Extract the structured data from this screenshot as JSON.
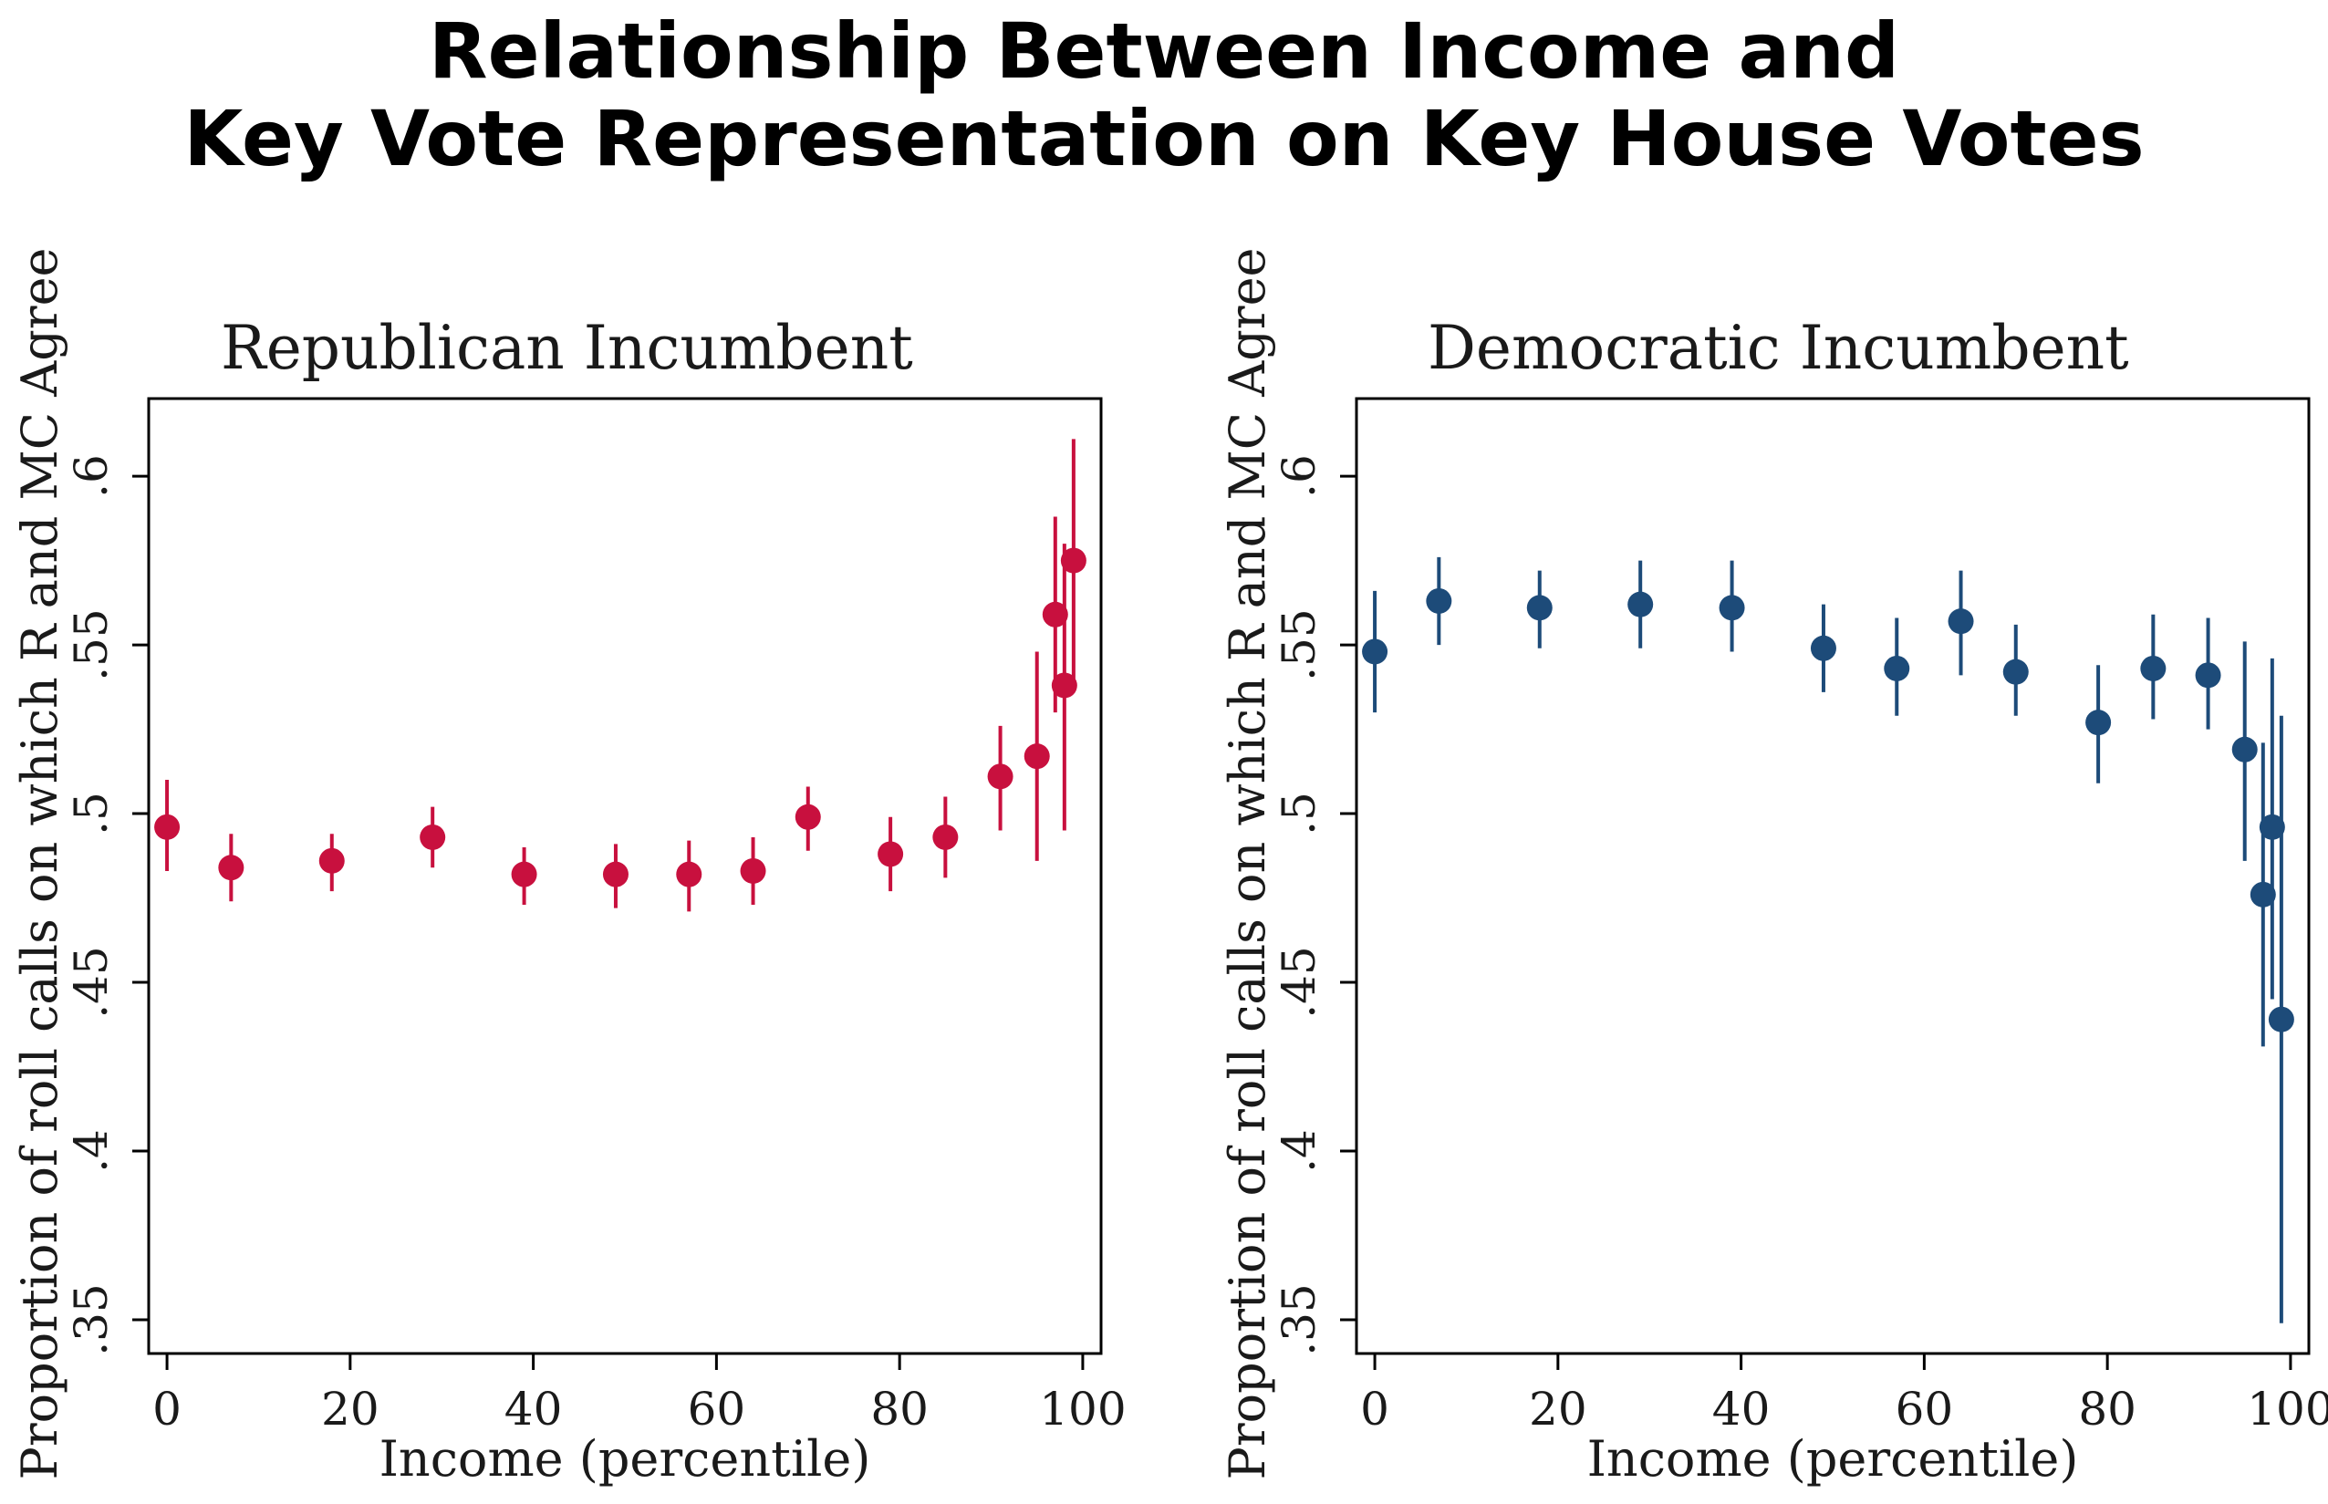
{
  "title_lines": [
    "Relationship Between Income and",
    "Key Vote Representation on Key House Votes"
  ],
  "colors": {
    "republican": "#c8103e",
    "democratic": "#1d4b79"
  },
  "chart_data": [
    {
      "type": "scatter",
      "title": "Republican Incumbent",
      "xlabel": "Income (percentile)",
      "ylabel": "Proportion of roll calls on which R and MC Agree",
      "xlim": [
        -2,
        102
      ],
      "ylim": [
        0.34,
        0.623
      ],
      "xticks": [
        0,
        20,
        40,
        60,
        80,
        100
      ],
      "xtick_labels": [
        "0",
        "20",
        "40",
        "60",
        "80",
        "100"
      ],
      "yticks": [
        0.35,
        0.4,
        0.45,
        0.5,
        0.55,
        0.6
      ],
      "ytick_labels": [
        ".35",
        ".4",
        ".45",
        ".5",
        ".55",
        ".6"
      ],
      "series": [
        {
          "color": "#c8103e",
          "x": [
            0,
            7,
            18,
            29,
            39,
            49,
            57,
            64,
            70,
            79,
            85,
            91,
            95,
            97,
            98,
            99
          ],
          "y": [
            0.496,
            0.484,
            0.486,
            0.493,
            0.482,
            0.482,
            0.482,
            0.483,
            0.499,
            0.488,
            0.493,
            0.511,
            0.517,
            0.559,
            0.538,
            0.575
          ],
          "lower": [
            0.483,
            0.474,
            0.477,
            0.484,
            0.473,
            0.472,
            0.471,
            0.473,
            0.489,
            0.477,
            0.481,
            0.495,
            0.486,
            0.53,
            0.495,
            0.538
          ],
          "upper": [
            0.51,
            0.494,
            0.494,
            0.502,
            0.49,
            0.491,
            0.492,
            0.493,
            0.508,
            0.499,
            0.505,
            0.526,
            0.548,
            0.588,
            0.58,
            0.611
          ]
        }
      ]
    },
    {
      "type": "scatter",
      "title": "Democratic Incumbent",
      "xlabel": "Income (percentile)",
      "ylabel": "Proportion of roll calls on which R and MC Agree",
      "xlim": [
        -2,
        102
      ],
      "ylim": [
        0.34,
        0.623
      ],
      "xticks": [
        0,
        20,
        40,
        60,
        80,
        100
      ],
      "xtick_labels": [
        "0",
        "20",
        "40",
        "60",
        "80",
        "100"
      ],
      "yticks": [
        0.35,
        0.4,
        0.45,
        0.5,
        0.55,
        0.6
      ],
      "ytick_labels": [
        ".35",
        ".4",
        ".45",
        ".5",
        ".55",
        ".6"
      ],
      "series": [
        {
          "color": "#1d4b79",
          "x": [
            0,
            7,
            18,
            29,
            39,
            49,
            57,
            64,
            70,
            79,
            85,
            91,
            95,
            97,
            98,
            99
          ],
          "y": [
            0.548,
            0.563,
            0.561,
            0.562,
            0.561,
            0.549,
            0.543,
            0.557,
            0.542,
            0.527,
            0.543,
            0.541,
            0.519,
            0.476,
            0.496,
            0.439
          ],
          "lower": [
            0.53,
            0.55,
            0.549,
            0.549,
            0.548,
            0.536,
            0.529,
            0.541,
            0.529,
            0.509,
            0.528,
            0.525,
            0.486,
            0.431,
            0.445,
            0.349
          ],
          "upper": [
            0.566,
            0.576,
            0.572,
            0.575,
            0.575,
            0.562,
            0.558,
            0.572,
            0.556,
            0.544,
            0.559,
            0.558,
            0.551,
            0.521,
            0.546,
            0.529
          ]
        }
      ]
    }
  ]
}
